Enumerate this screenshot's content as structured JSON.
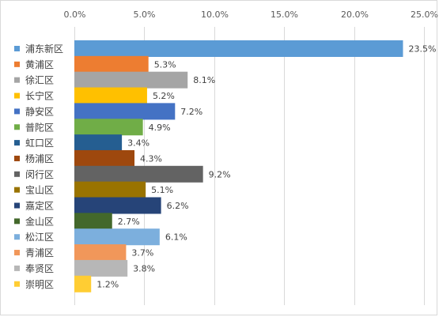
{
  "chart_data": {
    "type": "bar",
    "orientation": "horizontal",
    "title": "",
    "xlabel": "",
    "ylabel": "",
    "xlim": [
      0,
      25
    ],
    "x_ticks": [
      0,
      5,
      10,
      15,
      20,
      25
    ],
    "x_tick_labels": [
      "0.0%",
      "5.0%",
      "10.0%",
      "15.0%",
      "20.0%",
      "25.0%"
    ],
    "x_axis_position": "top",
    "grid": "vertical",
    "legend_position": "left",
    "categories": [
      "浦东新区",
      "黄浦区",
      "徐汇区",
      "长宁区",
      "静安区",
      "普陀区",
      "虹口区",
      "杨浦区",
      "闵行区",
      "宝山区",
      "嘉定区",
      "金山区",
      "松江区",
      "青浦区",
      "奉贤区",
      "崇明区"
    ],
    "values": [
      23.5,
      5.3,
      8.1,
      5.2,
      7.2,
      4.9,
      3.4,
      4.3,
      9.2,
      5.1,
      6.2,
      2.7,
      6.1,
      3.7,
      3.8,
      1.2
    ],
    "data_labels": [
      "23.5%",
      "5.3%",
      "8.1%",
      "5.2%",
      "7.2%",
      "4.9%",
      "3.4%",
      "4.3%",
      "9.2%",
      "5.1%",
      "6.2%",
      "2.7%",
      "6.1%",
      "3.7%",
      "3.8%",
      "1.2%"
    ],
    "colors": [
      "#5b9bd5",
      "#ed7d31",
      "#a5a5a5",
      "#ffc000",
      "#4472c4",
      "#70ad47",
      "#255e91",
      "#9e480e",
      "#636363",
      "#997300",
      "#264478",
      "#43682b",
      "#7cafdd",
      "#f1975a",
      "#b7b7b7",
      "#ffcd33"
    ]
  }
}
